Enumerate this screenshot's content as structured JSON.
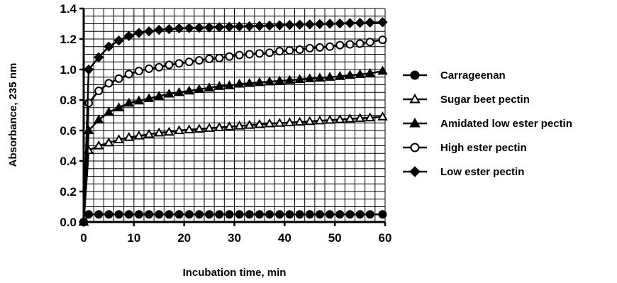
{
  "chart_data": {
    "type": "line",
    "xlabel": "Incubation time, min",
    "ylabel": "Absorbance, 235 nm",
    "xlim": [
      0,
      60
    ],
    "ylim": [
      0,
      1.4
    ],
    "xticks": [
      "0",
      "10",
      "20",
      "30",
      "40",
      "50",
      "60"
    ],
    "yticks": [
      "0.0",
      "0.2",
      "0.4",
      "0.6",
      "0.8",
      "1.0",
      "1.2",
      "1.4"
    ],
    "grid": true,
    "legend_position": "right",
    "x": [
      0,
      1,
      3,
      5,
      7,
      9,
      11,
      13,
      15,
      17,
      19,
      21,
      23,
      25,
      27,
      29,
      31,
      33,
      35,
      37,
      39,
      41,
      43,
      45,
      47,
      49,
      51,
      53,
      55,
      57,
      59.5
    ],
    "series": [
      {
        "name": "Carrageenan",
        "marker": "filled-circle",
        "values": [
          0,
          0.05,
          0.05,
          0.05,
          0.05,
          0.05,
          0.05,
          0.05,
          0.05,
          0.05,
          0.05,
          0.05,
          0.05,
          0.05,
          0.05,
          0.05,
          0.05,
          0.05,
          0.05,
          0.05,
          0.05,
          0.05,
          0.05,
          0.05,
          0.05,
          0.05,
          0.05,
          0.05,
          0.05,
          0.05,
          0.05
        ]
      },
      {
        "name": "Sugar beet pectin",
        "marker": "open-triangle",
        "values": [
          0,
          0.47,
          0.5,
          0.52,
          0.54,
          0.555,
          0.565,
          0.575,
          0.585,
          0.59,
          0.6,
          0.605,
          0.61,
          0.615,
          0.62,
          0.625,
          0.63,
          0.635,
          0.64,
          0.645,
          0.648,
          0.652,
          0.656,
          0.66,
          0.664,
          0.668,
          0.672,
          0.676,
          0.68,
          0.684,
          0.69
        ]
      },
      {
        "name": "Amidated low ester pectin",
        "marker": "filled-triangle",
        "values": [
          0,
          0.6,
          0.67,
          0.72,
          0.75,
          0.78,
          0.795,
          0.81,
          0.825,
          0.84,
          0.85,
          0.86,
          0.87,
          0.88,
          0.89,
          0.895,
          0.905,
          0.91,
          0.915,
          0.92,
          0.925,
          0.93,
          0.935,
          0.94,
          0.945,
          0.95,
          0.955,
          0.962,
          0.968,
          0.975,
          0.99
        ]
      },
      {
        "name": "High ester pectin",
        "marker": "open-circle",
        "values": [
          0,
          0.78,
          0.86,
          0.91,
          0.94,
          0.97,
          0.99,
          1.005,
          1.015,
          1.03,
          1.04,
          1.05,
          1.06,
          1.07,
          1.075,
          1.085,
          1.095,
          1.1,
          1.105,
          1.11,
          1.12,
          1.125,
          1.13,
          1.14,
          1.145,
          1.15,
          1.16,
          1.165,
          1.17,
          1.18,
          1.195
        ]
      },
      {
        "name": "Low ester pectin",
        "marker": "filled-diamond",
        "values": [
          0,
          1.0,
          1.08,
          1.15,
          1.19,
          1.22,
          1.24,
          1.25,
          1.26,
          1.265,
          1.27,
          1.272,
          1.274,
          1.276,
          1.278,
          1.28,
          1.282,
          1.284,
          1.286,
          1.288,
          1.29,
          1.292,
          1.294,
          1.296,
          1.298,
          1.3,
          1.302,
          1.304,
          1.306,
          1.308,
          1.31
        ]
      }
    ]
  }
}
